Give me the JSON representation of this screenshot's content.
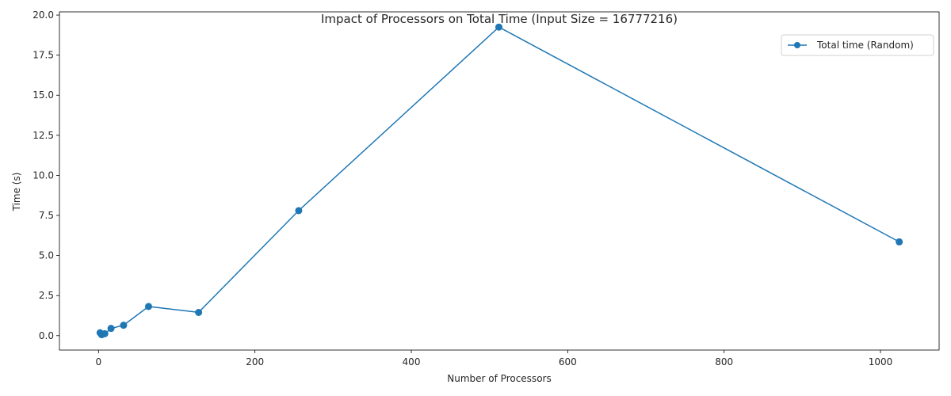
{
  "chart_data": {
    "type": "line",
    "title": "Impact of Processors on Total Time (Input Size = 16777216)",
    "xlabel": "Number of Processors",
    "ylabel": "Time (s)",
    "xlim": [
      -50,
      1075
    ],
    "ylim": [
      -0.9,
      20.2
    ],
    "xticks": [
      0,
      200,
      400,
      600,
      800,
      1000
    ],
    "yticks": [
      0.0,
      2.5,
      5.0,
      7.5,
      10.0,
      12.5,
      15.0,
      17.5,
      20.0
    ],
    "xtick_labels": [
      "0",
      "200",
      "400",
      "600",
      "800",
      "1000"
    ],
    "ytick_labels": [
      "0.0",
      "2.5",
      "5.0",
      "7.5",
      "10.0",
      "12.5",
      "15.0",
      "17.5",
      "20.0"
    ],
    "grid": false,
    "legend_position": "top-right",
    "series": [
      {
        "name": "Total time (Random)",
        "color": "#1f77b4",
        "marker": "circle",
        "x": [
          2,
          4,
          8,
          16,
          32,
          64,
          128,
          256,
          512,
          1024
        ],
        "y": [
          0.18,
          0.06,
          0.12,
          0.45,
          0.65,
          1.82,
          1.45,
          7.8,
          19.25,
          5.85
        ]
      }
    ]
  }
}
